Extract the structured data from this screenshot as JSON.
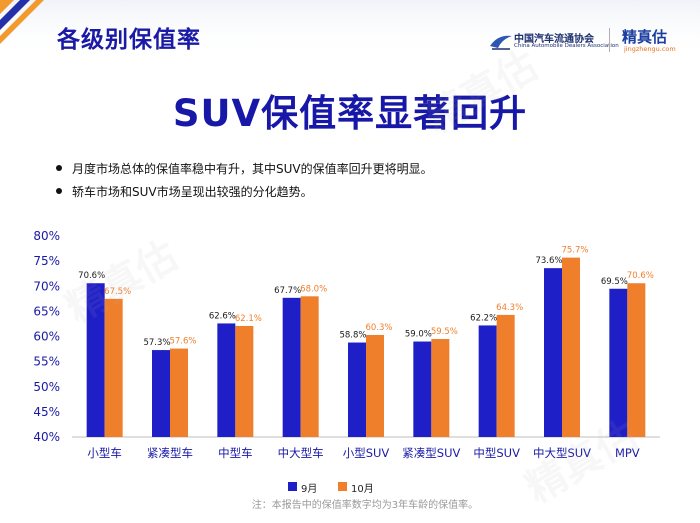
{
  "header": {
    "section_title": "各级别保值率",
    "cada_logo_cn": "中国汽车流通协会",
    "cada_logo_en": "China Automobile Dealers Association",
    "jzg_logo_cn": "精真估",
    "jzg_logo_url": "jingzhengu.com"
  },
  "headline": "SUV保值率显著回升",
  "bullets": [
    "月度市场总体的保值率稳中有升，其中SUV的保值率回升更将明显。",
    "轿车市场和SUV市场呈现出较强的分化趋势。"
  ],
  "footnote": "注：本报告中的保值率数字均为3年车龄的保值率。",
  "colors": {
    "title_blue": "#1717a8",
    "series_sep": "#1f1fc8",
    "series_oct": "#f07f2c",
    "stripe_orange": "#f39a2e",
    "stripe_blue": "#2430a8"
  },
  "chart_data": {
    "type": "bar",
    "categories": [
      "小型车",
      "紧凑型车",
      "中型车",
      "中大型车",
      "小型SUV",
      "紧凑型SUV",
      "中型SUV",
      "中大型SUV",
      "MPV"
    ],
    "series": [
      {
        "name": "9月",
        "values": [
          70.6,
          57.3,
          62.6,
          67.7,
          58.8,
          59.0,
          62.2,
          73.6,
          69.5
        ]
      },
      {
        "name": "10月",
        "values": [
          67.5,
          57.6,
          62.1,
          68.0,
          60.3,
          59.5,
          64.3,
          75.7,
          70.6
        ]
      }
    ],
    "data_labels": {
      "9月": [
        "70.6%",
        "57.3%",
        "62.6%",
        "67.7%",
        "58.8%",
        "59.0%",
        "62.2%",
        "73.6%",
        "69.5%"
      ],
      "10月": [
        "67.5%",
        "57.6%",
        "62.1%",
        "68.0%",
        "60.3%",
        "59.5%",
        "64.3%",
        "75.7%",
        "70.6%"
      ]
    },
    "yticks": [
      "40%",
      "45%",
      "50%",
      "55%",
      "60%",
      "65%",
      "70%",
      "75%",
      "80%"
    ],
    "ylim": [
      40,
      80
    ],
    "grid": false,
    "legend_position": "bottom",
    "title": "",
    "xlabel": "",
    "ylabel": ""
  }
}
